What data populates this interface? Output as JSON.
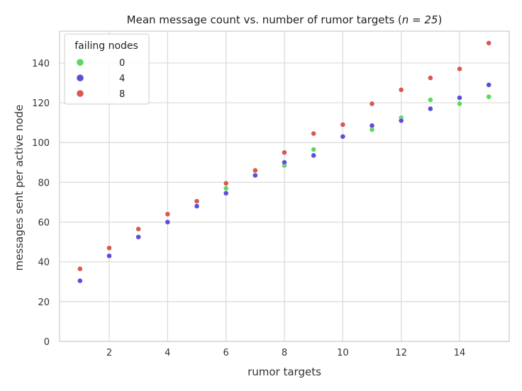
{
  "chart_data": {
    "type": "scatter",
    "title_prefix": "Mean message count vs. number of rumor targets (",
    "title_math": "n = 25",
    "title_suffix": ")",
    "xlabel": "rumor targets",
    "ylabel": "messages sent per active node",
    "xlim": [
      0.3,
      15.7
    ],
    "ylim": [
      0,
      156
    ],
    "xticks": [
      2,
      4,
      6,
      8,
      10,
      12,
      14
    ],
    "yticks": [
      0,
      20,
      40,
      60,
      80,
      100,
      120,
      140
    ],
    "grid": true,
    "legend": {
      "title": "failing nodes",
      "placement": "top-left"
    },
    "x": [
      1,
      2,
      3,
      4,
      5,
      6,
      7,
      8,
      9,
      10,
      11,
      12,
      13,
      14,
      15
    ],
    "series": [
      {
        "name": "0",
        "color": "#5cd85c",
        "values": [
          null,
          null,
          null,
          null,
          null,
          77.0,
          null,
          88.5,
          96.5,
          null,
          106.5,
          112.5,
          121.5,
          119.5,
          123.0
        ]
      },
      {
        "name": "4",
        "color": "#5b4ed8",
        "values": [
          30.5,
          43.0,
          52.5,
          60.0,
          68.0,
          74.5,
          83.5,
          90.0,
          93.5,
          103.0,
          108.5,
          111.0,
          117.0,
          122.5,
          129.0
        ]
      },
      {
        "name": "8",
        "color": "#d65a4f",
        "values": [
          36.5,
          47.0,
          56.5,
          64.0,
          70.5,
          79.5,
          86.0,
          95.0,
          104.5,
          109.0,
          119.5,
          126.5,
          132.5,
          137.0,
          150.0
        ]
      }
    ]
  }
}
